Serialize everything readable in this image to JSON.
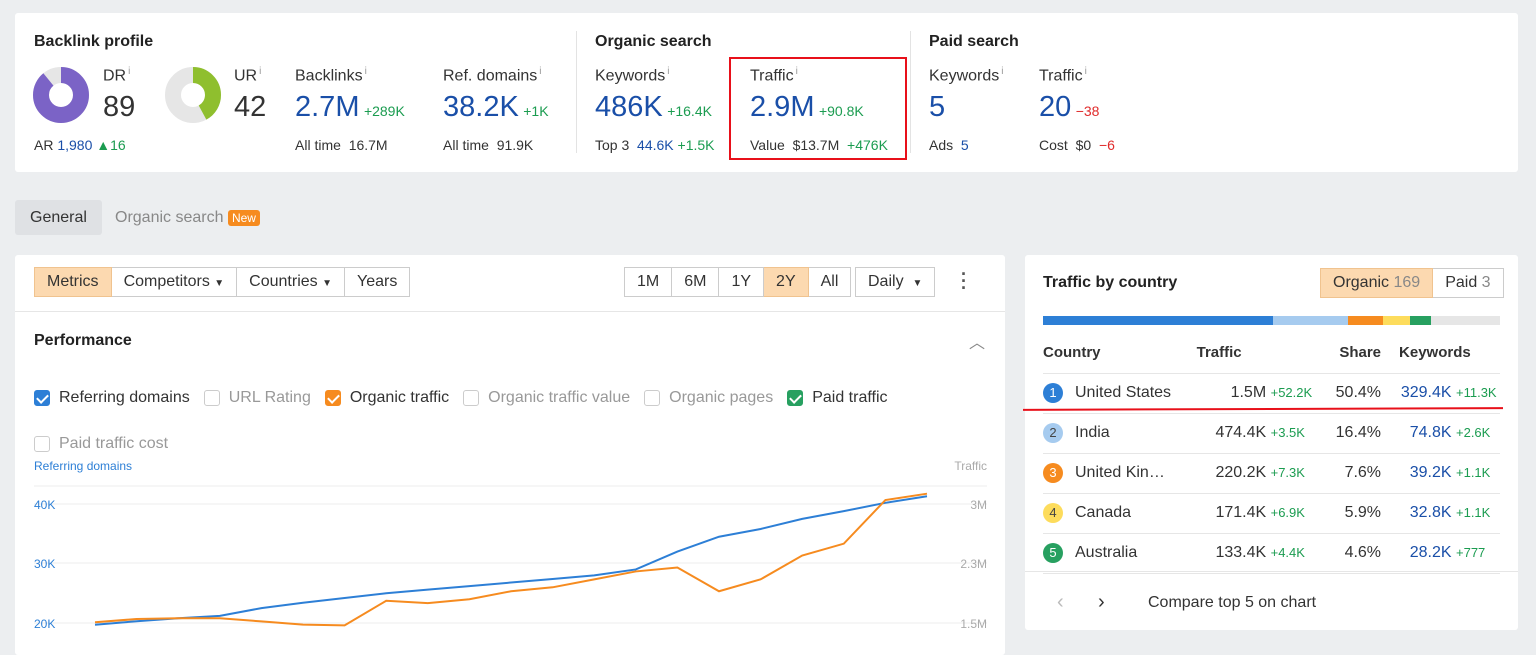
{
  "backlink": {
    "title": "Backlink profile",
    "dr_label": "DR",
    "dr": "89",
    "dr_fraction": 0.89,
    "ur_label": "UR",
    "ur": "42",
    "ur_fraction": 0.42,
    "ar_label": "AR",
    "ar": "1,980",
    "ar_delta": "16",
    "backlinks_label": "Backlinks",
    "backlinks": "2.7M",
    "backlinks_delta": "+289K",
    "backlinks_alltime_label": "All time",
    "backlinks_alltime": "16.7M",
    "refdomains_label": "Ref. domains",
    "refdomains": "38.2K",
    "refdomains_delta": "+1K",
    "refdomains_alltime_label": "All time",
    "refdomains_alltime": "91.9K"
  },
  "organic": {
    "title": "Organic search",
    "keywords_label": "Keywords",
    "keywords": "486K",
    "keywords_delta": "+16.4K",
    "top3_label": "Top 3",
    "top3": "44.6K",
    "top3_delta": "+1.5K",
    "traffic_label": "Traffic",
    "traffic": "2.9M",
    "traffic_delta": "+90.8K",
    "value_label": "Value",
    "value": "$13.7M",
    "value_delta": "+476K"
  },
  "paid": {
    "title": "Paid search",
    "keywords_label": "Keywords",
    "keywords": "5",
    "ads_label": "Ads",
    "ads": "5",
    "traffic_label": "Traffic",
    "traffic": "20",
    "traffic_delta": "−38",
    "cost_label": "Cost",
    "cost": "$0",
    "cost_delta": "−6"
  },
  "tabs": {
    "general": "General",
    "organic": "Organic search",
    "new_badge": "New"
  },
  "toolbar": {
    "metrics": "Metrics",
    "competitors": "Competitors",
    "countries": "Countries",
    "years": "Years",
    "ranges": [
      "1M",
      "6M",
      "1Y",
      "2Y",
      "All"
    ],
    "active_range": "2Y",
    "interval": "Daily"
  },
  "performance": {
    "title": "Performance",
    "checkboxes": [
      {
        "label": "Referring domains",
        "checked": true,
        "color": "#2d7fd6"
      },
      {
        "label": "URL Rating",
        "checked": false
      },
      {
        "label": "Organic traffic",
        "checked": true,
        "color": "#f68b1f"
      },
      {
        "label": "Organic traffic value",
        "checked": false
      },
      {
        "label": "Organic pages",
        "checked": false
      },
      {
        "label": "Paid traffic",
        "checked": true,
        "color": "#27a060"
      },
      {
        "label": "Paid traffic cost",
        "checked": false
      }
    ]
  },
  "chart_data": {
    "type": "line",
    "left_axis_label": "Referring domains",
    "right_axis_label": "Traffic",
    "left_ticks": [
      "20K",
      "30K",
      "40K"
    ],
    "right_ticks": [
      "1.5M",
      "2.3M",
      "3M"
    ],
    "grid": true,
    "series": [
      {
        "name": "Referring domains",
        "color": "#2d7fd6",
        "axis": "left",
        "values": [
          19700,
          20300,
          20800,
          21200,
          22500,
          23400,
          24200,
          25000,
          25600,
          26200,
          26800,
          27400,
          28000,
          29000,
          32000,
          34500,
          35800,
          37500,
          38800,
          40200,
          41300
        ]
      },
      {
        "name": "Organic traffic",
        "color": "#f68b1f",
        "axis": "right",
        "values": [
          1510000,
          1550000,
          1560000,
          1560000,
          1520000,
          1480000,
          1470000,
          1780000,
          1750000,
          1800000,
          1900000,
          1950000,
          2050000,
          2150000,
          2200000,
          1900000,
          2050000,
          2350000,
          2500000,
          3050000,
          3130000
        ]
      }
    ]
  },
  "countries": {
    "title": "Traffic by country",
    "organic_label": "Organic",
    "organic_count": "169",
    "paid_label": "Paid",
    "paid_count": "3",
    "headers": {
      "country": "Country",
      "traffic": "Traffic",
      "share": "Share",
      "keywords": "Keywords"
    },
    "rows": [
      {
        "rank": "1",
        "name": "United States",
        "traffic": "1.5M",
        "traffic_delta": "+52.2K",
        "share": "50.4%",
        "share_value": 50.4,
        "keywords": "329.4K",
        "keywords_delta": "+11.3K",
        "color": "#2d7fd6"
      },
      {
        "rank": "2",
        "name": "India",
        "traffic": "474.4K",
        "traffic_delta": "+3.5K",
        "share": "16.4%",
        "share_value": 16.4,
        "keywords": "74.8K",
        "keywords_delta": "+2.6K",
        "color": "#a6cbef"
      },
      {
        "rank": "3",
        "name": "United Kin…",
        "traffic": "220.2K",
        "traffic_delta": "+7.3K",
        "share": "7.6%",
        "share_value": 7.6,
        "keywords": "39.2K",
        "keywords_delta": "+1.1K",
        "color": "#f68b1f"
      },
      {
        "rank": "4",
        "name": "Canada",
        "traffic": "171.4K",
        "traffic_delta": "+6.9K",
        "share": "5.9%",
        "share_value": 5.9,
        "keywords": "32.8K",
        "keywords_delta": "+1.1K",
        "color": "#fddc5c"
      },
      {
        "rank": "5",
        "name": "Australia",
        "traffic": "133.4K",
        "traffic_delta": "+4.4K",
        "share": "4.6%",
        "share_value": 4.6,
        "keywords": "28.2K",
        "keywords_delta": "+777",
        "color": "#27a060"
      }
    ],
    "compare": "Compare top 5 on chart"
  }
}
